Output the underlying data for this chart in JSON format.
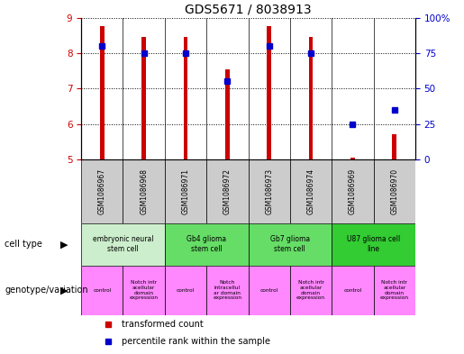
{
  "title": "GDS5671 / 8038913",
  "samples": [
    "GSM1086967",
    "GSM1086968",
    "GSM1086971",
    "GSM1086972",
    "GSM1086973",
    "GSM1086974",
    "GSM1086969",
    "GSM1086970"
  ],
  "transformed_counts": [
    8.75,
    8.45,
    8.45,
    7.55,
    8.75,
    8.45,
    5.05,
    5.7
  ],
  "percentile_ranks": [
    80,
    75,
    75,
    55,
    80,
    75,
    25,
    35
  ],
  "ylim_left": [
    5,
    9
  ],
  "ylim_right": [
    0,
    100
  ],
  "yticks_left": [
    5,
    6,
    7,
    8,
    9
  ],
  "yticks_right": [
    0,
    25,
    50,
    75,
    100
  ],
  "bar_color": "#cc0000",
  "dot_color": "#0000cc",
  "cell_types": [
    {
      "label": "embryonic neural\nstem cell",
      "span": [
        0,
        2
      ],
      "color": "#cceecc"
    },
    {
      "label": "Gb4 glioma\nstem cell",
      "span": [
        2,
        4
      ],
      "color": "#66dd66"
    },
    {
      "label": "Gb7 glioma\nstem cell",
      "span": [
        4,
        6
      ],
      "color": "#66dd66"
    },
    {
      "label": "U87 glioma cell\nline",
      "span": [
        6,
        8
      ],
      "color": "#33cc33"
    }
  ],
  "genotypes": [
    {
      "label": "control",
      "span": [
        0,
        1
      ],
      "color": "#ff88ff"
    },
    {
      "label": "Notch intr\nacellular\ndomain\nexpression",
      "span": [
        1,
        2
      ],
      "color": "#ff88ff"
    },
    {
      "label": "control",
      "span": [
        2,
        3
      ],
      "color": "#ff88ff"
    },
    {
      "label": "Notch\nintracellul\nar domain\nexpression",
      "span": [
        3,
        4
      ],
      "color": "#ff88ff"
    },
    {
      "label": "control",
      "span": [
        4,
        5
      ],
      "color": "#ff88ff"
    },
    {
      "label": "Notch intr\nacellular\ndomain\nexpression",
      "span": [
        5,
        6
      ],
      "color": "#ff88ff"
    },
    {
      "label": "control",
      "span": [
        6,
        7
      ],
      "color": "#ff88ff"
    },
    {
      "label": "Notch intr\nacellular\ndomain\nexpression",
      "span": [
        7,
        8
      ],
      "color": "#ff88ff"
    }
  ],
  "legend_label_red": "transformed count",
  "legend_label_blue": "percentile rank within the sample",
  "background_color": "#ffffff",
  "sample_bg_color": "#cccccc",
  "bar_color_r": "#cc0000",
  "dot_color_b": "#0000cc",
  "bar_width": 0.1
}
